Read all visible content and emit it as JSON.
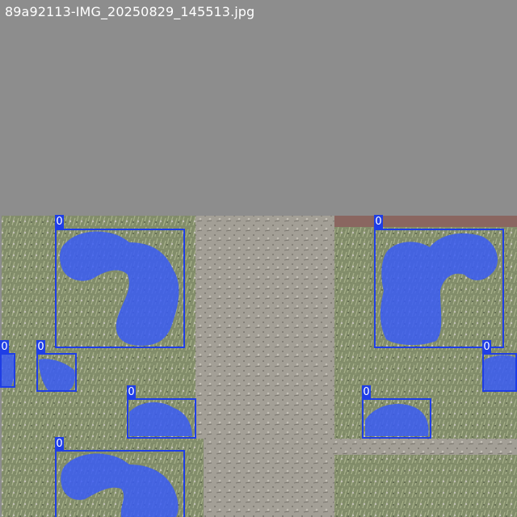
{
  "image": {
    "filename": "89a92113-IMG_20250829_145513.jpg"
  },
  "colors": {
    "padding_gray": "#8d8d8d",
    "detection": "#1f3ee6",
    "mask_fill": "#3a5cf5",
    "ground_light": "#a8a49c",
    "ground_dark": "#6e6a62",
    "vegetation": "#7f8f5e",
    "wall": "#8a6660"
  },
  "detections": [
    {
      "label": "0"
    },
    {
      "label": "0"
    },
    {
      "label": "0"
    },
    {
      "label": "0"
    },
    {
      "label": "0"
    },
    {
      "label": "0"
    },
    {
      "label": "0"
    },
    {
      "label": "0"
    },
    {
      "label": "0"
    }
  ]
}
